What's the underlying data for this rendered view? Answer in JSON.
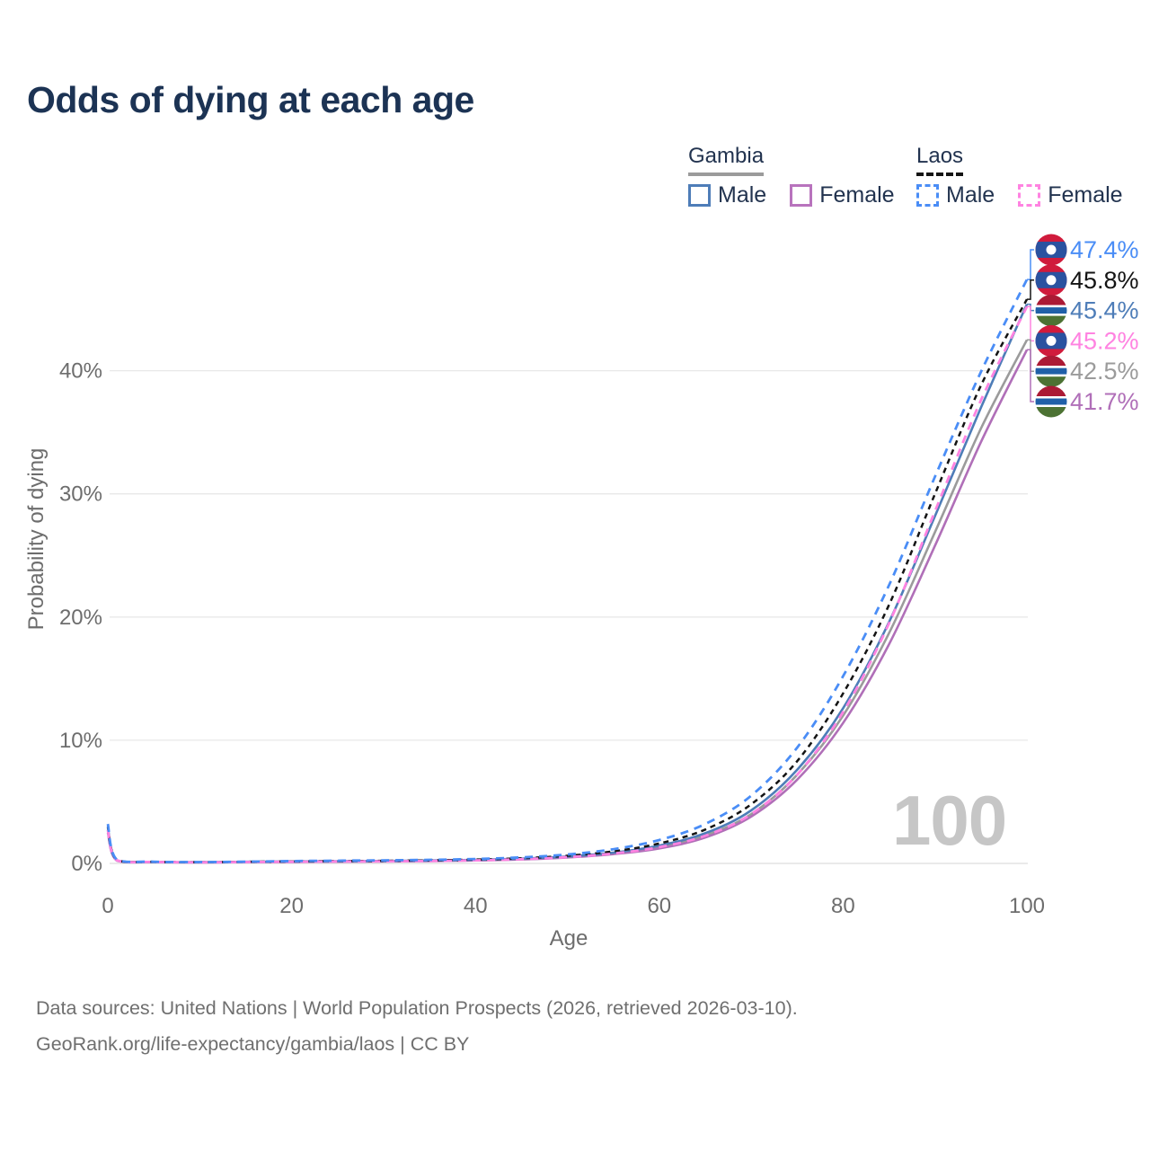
{
  "title": "Odds of dying at each age",
  "watermark": "100",
  "legend": {
    "groups": [
      {
        "country": "Gambia",
        "line_style": "solid",
        "line_color": "#9b9b9b",
        "items": [
          {
            "label": "Male",
            "color": "#4e7db8",
            "swatch_style": "solid"
          },
          {
            "label": "Female",
            "color": "#b873bd",
            "swatch_style": "solid"
          }
        ]
      },
      {
        "country": "Laos",
        "line_style": "dashed",
        "line_color": "#141414",
        "items": [
          {
            "label": "Male",
            "color": "#4a8df6",
            "swatch_style": "dashed"
          },
          {
            "label": "Female",
            "color": "#ff83e1",
            "swatch_style": "dashed"
          }
        ]
      }
    ]
  },
  "footer": {
    "line1": "Data sources: United Nations | World Population Prospects (2026, retrieved 2026-03-10).",
    "line2": "GeoRank.org/life-expectancy/gambia/laos | CC BY"
  },
  "chart_data": {
    "type": "line",
    "title": "Odds of dying at each age",
    "xlabel": "Age",
    "ylabel": "Probability of dying",
    "xlim": [
      0,
      100
    ],
    "ylim": [
      0,
      48
    ],
    "grid": "horizontal",
    "legend_position": "top-right",
    "xticks": [
      {
        "value": 0,
        "label": "0"
      },
      {
        "value": 20,
        "label": "20"
      },
      {
        "value": 40,
        "label": "40"
      },
      {
        "value": 60,
        "label": "60"
      },
      {
        "value": 80,
        "label": "80"
      },
      {
        "value": 100,
        "label": "100"
      }
    ],
    "yticks": [
      {
        "value": 0,
        "label": "0%"
      },
      {
        "value": 10,
        "label": "10%"
      },
      {
        "value": 20,
        "label": "20%"
      },
      {
        "value": 30,
        "label": "30%"
      },
      {
        "value": 40,
        "label": "40%"
      }
    ],
    "ages": [
      0,
      1,
      5,
      10,
      15,
      20,
      25,
      30,
      35,
      40,
      45,
      50,
      55,
      60,
      65,
      70,
      75,
      80,
      85,
      90,
      95,
      100
    ],
    "series": [
      {
        "id": "gambia-total",
        "name": "Gambia (both sexes)",
        "country": "Gambia",
        "color": "#9b9b9b",
        "dash": null,
        "width": 2.6,
        "flag": "gambia",
        "end_label": "42.5%",
        "end_value": 42.5,
        "label_row": 4,
        "values": [
          2.7,
          0.24,
          0.11,
          0.09,
          0.11,
          0.14,
          0.16,
          0.18,
          0.21,
          0.26,
          0.35,
          0.52,
          0.81,
          1.33,
          2.27,
          4.0,
          7.2,
          12.0,
          18.7,
          26.9,
          35.3,
          42.5
        ]
      },
      {
        "id": "gambia-female",
        "name": "Gambia Female",
        "country": "Gambia",
        "color": "#b06fb8",
        "dash": null,
        "width": 2.6,
        "flag": "gambia",
        "end_label": "41.7%",
        "end_value": 41.7,
        "label_row": 5,
        "values": [
          2.5,
          0.22,
          0.1,
          0.08,
          0.1,
          0.12,
          0.14,
          0.16,
          0.19,
          0.24,
          0.32,
          0.48,
          0.75,
          1.22,
          2.1,
          3.8,
          6.8,
          11.4,
          17.8,
          25.8,
          34.2,
          41.7
        ]
      },
      {
        "id": "gambia-male",
        "name": "Gambia Male",
        "country": "Gambia",
        "color": "#4e7db8",
        "dash": null,
        "width": 2.6,
        "flag": "gambia",
        "end_label": "45.4%",
        "end_value": 45.4,
        "label_row": 2,
        "values": [
          2.9,
          0.26,
          0.12,
          0.1,
          0.13,
          0.16,
          0.18,
          0.2,
          0.24,
          0.29,
          0.39,
          0.56,
          0.87,
          1.45,
          2.45,
          4.3,
          7.6,
          12.6,
          19.6,
          28.2,
          37.0,
          45.4
        ]
      },
      {
        "id": "laos-total",
        "name": "Laos (both sexes)",
        "country": "Laos",
        "color": "#141414",
        "dash": "6 5",
        "width": 2.5,
        "flag": "laos",
        "end_label": "45.8%",
        "end_value": 45.8,
        "label_row": 1,
        "values": [
          3.0,
          0.28,
          0.13,
          0.1,
          0.13,
          0.16,
          0.19,
          0.21,
          0.25,
          0.31,
          0.42,
          0.62,
          0.98,
          1.62,
          2.75,
          4.8,
          8.3,
          13.8,
          21.0,
          30.0,
          38.8,
          45.8
        ]
      },
      {
        "id": "laos-female",
        "name": "Laos Female",
        "country": "Laos",
        "color": "#ff83e1",
        "dash": "9 7",
        "width": 2.8,
        "flag": "laos",
        "end_label": "45.2%",
        "end_value": 45.2,
        "label_row": 3,
        "values": [
          2.7,
          0.25,
          0.12,
          0.09,
          0.11,
          0.13,
          0.15,
          0.17,
          0.2,
          0.25,
          0.34,
          0.51,
          0.8,
          1.32,
          2.25,
          4.0,
          7.2,
          12.3,
          19.5,
          28.6,
          37.6,
          45.2
        ]
      },
      {
        "id": "laos-male",
        "name": "Laos Male",
        "country": "Laos",
        "color": "#4a8df6",
        "dash": "9 7",
        "width": 2.8,
        "flag": "laos",
        "end_label": "47.4%",
        "end_value": 47.4,
        "label_row": 0,
        "values": [
          3.2,
          0.3,
          0.14,
          0.11,
          0.14,
          0.19,
          0.22,
          0.25,
          0.29,
          0.36,
          0.49,
          0.72,
          1.15,
          1.9,
          3.2,
          5.5,
          9.4,
          15.2,
          22.6,
          31.4,
          39.9,
          47.4
        ]
      }
    ],
    "flag_colors": {
      "laos": {
        "red": "#d01b3c",
        "blue": "#2a52a0",
        "white": "#ffffff"
      },
      "gambia": {
        "red": "#ab1a35",
        "blue": "#2060a8",
        "green": "#4c7233",
        "white": "#ffffff"
      }
    }
  }
}
